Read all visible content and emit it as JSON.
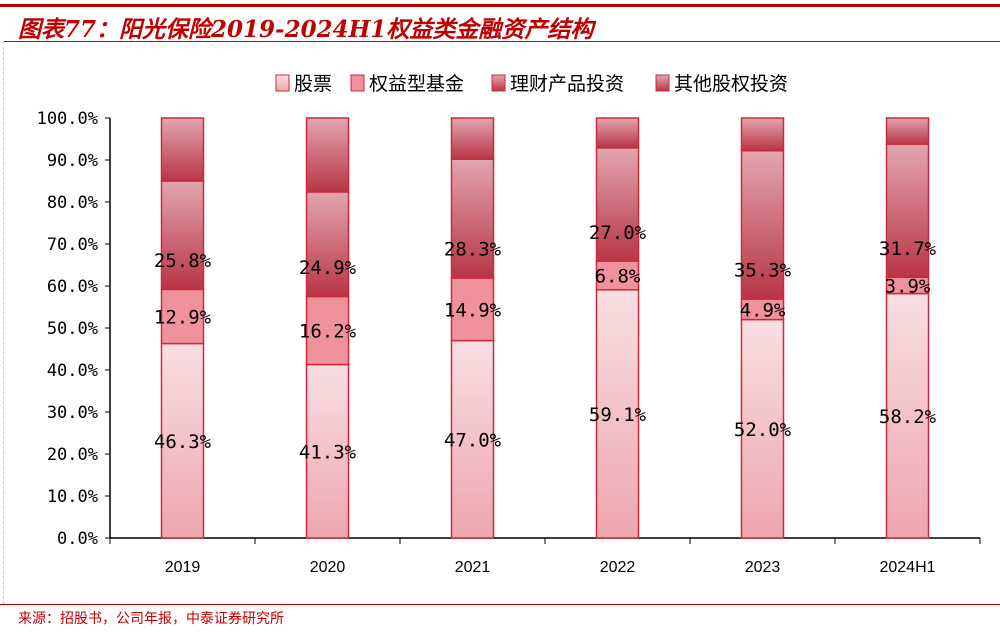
{
  "title": "图表77：阳光保险2019-2024H1权益类金融资产结构",
  "source": "来源：招股书，公司年报，中泰证券研究所",
  "chart_data": {
    "type": "bar",
    "stacked": true,
    "categories": [
      "2019",
      "2020",
      "2021",
      "2022",
      "2023",
      "2024H1"
    ],
    "ylim": [
      0,
      100
    ],
    "yticks": [
      "0.0%",
      "10.0%",
      "20.0%",
      "30.0%",
      "40.0%",
      "50.0%",
      "60.0%",
      "70.0%",
      "80.0%",
      "90.0%",
      "100.0%"
    ],
    "legend_position": "top",
    "series": [
      {
        "name": "股票",
        "values": [
          46.3,
          41.3,
          47.0,
          59.1,
          52.0,
          58.2
        ],
        "labels": [
          "46.3%",
          "41.3%",
          "47.0%",
          "59.1%",
          "52.0%",
          "58.2%"
        ],
        "color_top": "#f8dfe2",
        "color_bottom": "#eda6ad"
      },
      {
        "name": "权益型基金",
        "values": [
          12.9,
          16.2,
          14.9,
          6.8,
          4.9,
          3.9
        ],
        "labels": [
          "12.9%",
          "16.2%",
          "14.9%",
          "6.8%",
          "4.9%",
          "3.9%"
        ],
        "color_top": "#f0929b",
        "color_bottom": "#f0929b"
      },
      {
        "name": "理财产品投资",
        "values": [
          25.8,
          24.9,
          28.3,
          27.0,
          35.3,
          31.7
        ],
        "labels": [
          "25.8%",
          "24.9%",
          "28.3%",
          "27.0%",
          "35.3%",
          "31.7%"
        ],
        "color_top": "#e2a6ae",
        "color_bottom": "#b83546"
      },
      {
        "name": "其他股权投资",
        "values": [
          15.0,
          17.6,
          9.8,
          7.1,
          7.8,
          6.2
        ],
        "labels": [],
        "color_top": "#e2a6ae",
        "color_bottom": "#b83546"
      }
    ],
    "border_color": "#cc2a3c"
  }
}
